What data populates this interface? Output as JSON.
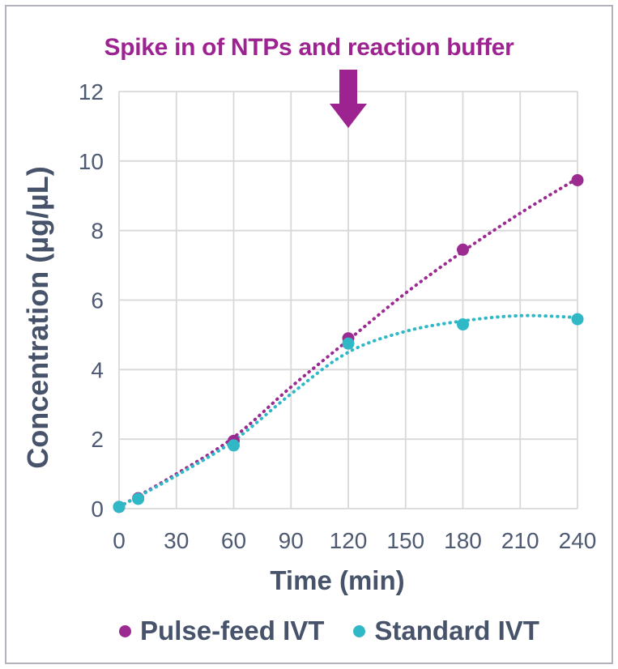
{
  "chart_data": {
    "type": "scatter",
    "annotation": {
      "text": "Spike in of NTPs and reaction buffer",
      "arrow_x": 120,
      "arrow_direction": "down"
    },
    "xlabel": "Time (min)",
    "ylabel": "Concentration (µg/µL)",
    "xlim": [
      0,
      240
    ],
    "ylim": [
      0,
      12
    ],
    "xticks": [
      0,
      30,
      60,
      90,
      120,
      150,
      180,
      210,
      240
    ],
    "yticks": [
      0,
      2,
      4,
      6,
      8,
      10,
      12
    ],
    "grid": true,
    "legend_position": "bottom",
    "series": [
      {
        "name": "Pulse-feed IVT",
        "color": "#9B2B90",
        "marker": "circle",
        "line_style": "dotted",
        "points": [
          [
            0,
            0
          ],
          [
            10,
            0.3
          ],
          [
            60,
            1.95
          ],
          [
            120,
            4.9
          ],
          [
            180,
            7.45
          ],
          [
            240,
            9.45
          ]
        ],
        "trendline": [
          [
            0,
            0.05
          ],
          [
            30,
            1.0
          ],
          [
            60,
            2.05
          ],
          [
            90,
            3.5
          ],
          [
            120,
            4.85
          ],
          [
            150,
            6.2
          ],
          [
            180,
            7.4
          ],
          [
            210,
            8.5
          ],
          [
            240,
            9.5
          ]
        ]
      },
      {
        "name": "Standard IVT",
        "color": "#30B8C6",
        "marker": "circle",
        "line_style": "dotted",
        "points": [
          [
            0,
            0
          ],
          [
            10,
            0.28
          ],
          [
            60,
            1.82
          ],
          [
            120,
            4.75
          ],
          [
            180,
            5.3
          ],
          [
            240,
            5.45
          ]
        ],
        "trendline": [
          [
            0,
            0.05
          ],
          [
            30,
            0.95
          ],
          [
            60,
            1.95
          ],
          [
            90,
            3.3
          ],
          [
            120,
            4.5
          ],
          [
            150,
            5.1
          ],
          [
            180,
            5.4
          ],
          [
            210,
            5.55
          ],
          [
            240,
            5.5
          ]
        ]
      }
    ],
    "colors": {
      "annotation": "#9C2390",
      "axis_text": "#47536A",
      "tick_text": "#4E5A72",
      "grid": "#D8D8D8",
      "frame_border": "#B2B1BC",
      "background": "#FFFFFF"
    }
  }
}
